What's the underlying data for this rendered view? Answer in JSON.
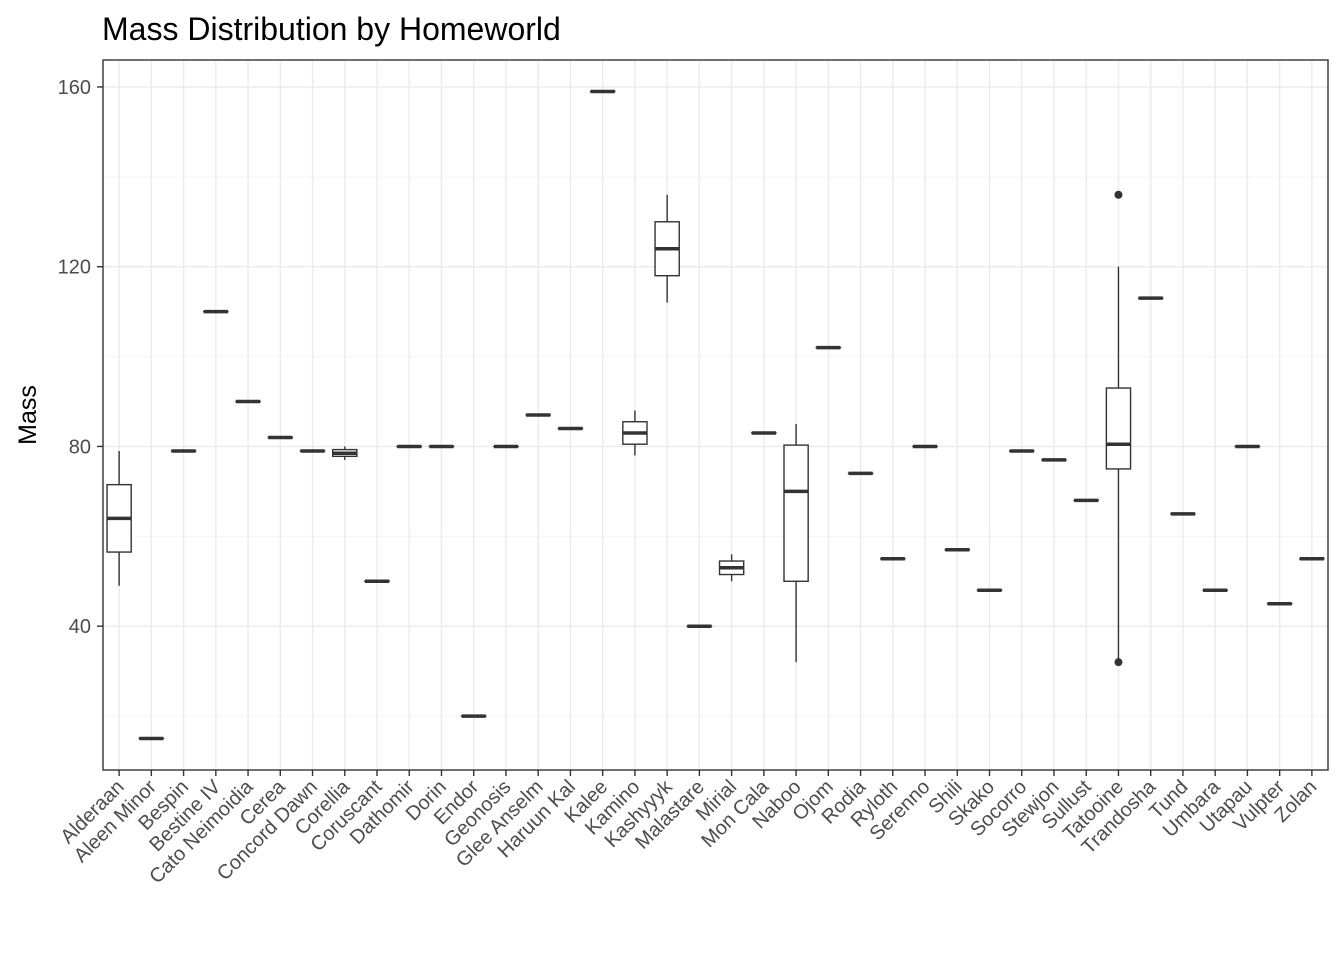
{
  "chart_data": {
    "type": "box",
    "title": "Mass Distribution by Homeworld",
    "xlabel": "",
    "ylabel": "Mass",
    "ylim": [
      8,
      166
    ],
    "yticks": [
      40,
      80,
      120,
      160
    ],
    "grid": true,
    "categories": [
      "Alderaan",
      "Aleen Minor",
      "Bespin",
      "Bestine IV",
      "Cato Neimoidia",
      "Cerea",
      "Concord Dawn",
      "Corellia",
      "Coruscant",
      "Dathomir",
      "Dorin",
      "Endor",
      "Geonosis",
      "Glee Anselm",
      "Haruun Kal",
      "Kalee",
      "Kamino",
      "Kashyyyk",
      "Malastare",
      "Mirial",
      "Mon Cala",
      "Naboo",
      "Ojom",
      "Rodia",
      "Ryloth",
      "Serenno",
      "Shili",
      "Skako",
      "Socorro",
      "Stewjon",
      "Sullust",
      "Tatooine",
      "Trandosha",
      "Tund",
      "Umbara",
      "Utapau",
      "Vulpter",
      "Zolan"
    ],
    "boxes": [
      {
        "category": "Alderaan",
        "min": 49,
        "q1": 56.5,
        "median": 64,
        "q3": 71.5,
        "max": 79,
        "outliers": []
      },
      {
        "category": "Aleen Minor",
        "min": 15,
        "q1": 15,
        "median": 15,
        "q3": 15,
        "max": 15,
        "outliers": []
      },
      {
        "category": "Bespin",
        "min": 79,
        "q1": 79,
        "median": 79,
        "q3": 79,
        "max": 79,
        "outliers": []
      },
      {
        "category": "Bestine IV",
        "min": 110,
        "q1": 110,
        "median": 110,
        "q3": 110,
        "max": 110,
        "outliers": []
      },
      {
        "category": "Cato Neimoidia",
        "min": 90,
        "q1": 90,
        "median": 90,
        "q3": 90,
        "max": 90,
        "outliers": []
      },
      {
        "category": "Cerea",
        "min": 82,
        "q1": 82,
        "median": 82,
        "q3": 82,
        "max": 82,
        "outliers": []
      },
      {
        "category": "Concord Dawn",
        "min": 79,
        "q1": 79,
        "median": 79,
        "q3": 79,
        "max": 79,
        "outliers": []
      },
      {
        "category": "Corellia",
        "min": 77,
        "q1": 77.8,
        "median": 78.5,
        "q3": 79.3,
        "max": 80,
        "outliers": []
      },
      {
        "category": "Coruscant",
        "min": 50,
        "q1": 50,
        "median": 50,
        "q3": 50,
        "max": 50,
        "outliers": []
      },
      {
        "category": "Dathomir",
        "min": 80,
        "q1": 80,
        "median": 80,
        "q3": 80,
        "max": 80,
        "outliers": []
      },
      {
        "category": "Dorin",
        "min": 80,
        "q1": 80,
        "median": 80,
        "q3": 80,
        "max": 80,
        "outliers": []
      },
      {
        "category": "Endor",
        "min": 20,
        "q1": 20,
        "median": 20,
        "q3": 20,
        "max": 20,
        "outliers": []
      },
      {
        "category": "Geonosis",
        "min": 80,
        "q1": 80,
        "median": 80,
        "q3": 80,
        "max": 80,
        "outliers": []
      },
      {
        "category": "Glee Anselm",
        "min": 87,
        "q1": 87,
        "median": 87,
        "q3": 87,
        "max": 87,
        "outliers": []
      },
      {
        "category": "Haruun Kal",
        "min": 84,
        "q1": 84,
        "median": 84,
        "q3": 84,
        "max": 84,
        "outliers": []
      },
      {
        "category": "Kalee",
        "min": 159,
        "q1": 159,
        "median": 159,
        "q3": 159,
        "max": 159,
        "outliers": []
      },
      {
        "category": "Kamino",
        "min": 78,
        "q1": 80.5,
        "median": 83,
        "q3": 85.5,
        "max": 88,
        "outliers": []
      },
      {
        "category": "Kashyyyk",
        "min": 112,
        "q1": 118,
        "median": 124,
        "q3": 130,
        "max": 136,
        "outliers": []
      },
      {
        "category": "Malastare",
        "min": 40,
        "q1": 40,
        "median": 40,
        "q3": 40,
        "max": 40,
        "outliers": []
      },
      {
        "category": "Mirial",
        "min": 50,
        "q1": 51.5,
        "median": 53,
        "q3": 54.5,
        "max": 56,
        "outliers": []
      },
      {
        "category": "Mon Cala",
        "min": 83,
        "q1": 83,
        "median": 83,
        "q3": 83,
        "max": 83,
        "outliers": []
      },
      {
        "category": "Naboo",
        "min": 32,
        "q1": 50,
        "median": 70,
        "q3": 80.3,
        "max": 85,
        "outliers": []
      },
      {
        "category": "Ojom",
        "min": 102,
        "q1": 102,
        "median": 102,
        "q3": 102,
        "max": 102,
        "outliers": []
      },
      {
        "category": "Rodia",
        "min": 74,
        "q1": 74,
        "median": 74,
        "q3": 74,
        "max": 74,
        "outliers": []
      },
      {
        "category": "Ryloth",
        "min": 55,
        "q1": 55,
        "median": 55,
        "q3": 55,
        "max": 55,
        "outliers": []
      },
      {
        "category": "Serenno",
        "min": 80,
        "q1": 80,
        "median": 80,
        "q3": 80,
        "max": 80,
        "outliers": []
      },
      {
        "category": "Shili",
        "min": 57,
        "q1": 57,
        "median": 57,
        "q3": 57,
        "max": 57,
        "outliers": []
      },
      {
        "category": "Skako",
        "min": 48,
        "q1": 48,
        "median": 48,
        "q3": 48,
        "max": 48,
        "outliers": []
      },
      {
        "category": "Socorro",
        "min": 79,
        "q1": 79,
        "median": 79,
        "q3": 79,
        "max": 79,
        "outliers": []
      },
      {
        "category": "Stewjon",
        "min": 77,
        "q1": 77,
        "median": 77,
        "q3": 77,
        "max": 77,
        "outliers": []
      },
      {
        "category": "Sullust",
        "min": 68,
        "q1": 68,
        "median": 68,
        "q3": 68,
        "max": 68,
        "outliers": []
      },
      {
        "category": "Tatooine",
        "min": 32,
        "q1": 75,
        "median": 80.5,
        "q3": 93,
        "max": 120,
        "outliers": [
          136,
          32
        ]
      },
      {
        "category": "Trandosha",
        "min": 113,
        "q1": 113,
        "median": 113,
        "q3": 113,
        "max": 113,
        "outliers": []
      },
      {
        "category": "Tund",
        "min": 65,
        "q1": 65,
        "median": 65,
        "q3": 65,
        "max": 65,
        "outliers": []
      },
      {
        "category": "Umbara",
        "min": 48,
        "q1": 48,
        "median": 48,
        "q3": 48,
        "max": 48,
        "outliers": []
      },
      {
        "category": "Utapau",
        "min": 80,
        "q1": 80,
        "median": 80,
        "q3": 80,
        "max": 80,
        "outliers": []
      },
      {
        "category": "Vulpter",
        "min": 45,
        "q1": 45,
        "median": 45,
        "q3": 45,
        "max": 45,
        "outliers": []
      },
      {
        "category": "Zolan",
        "min": 55,
        "q1": 55,
        "median": 55,
        "q3": 55,
        "max": 55,
        "outliers": []
      }
    ],
    "colors": {
      "box_stroke": "#333333",
      "grid_major": "#ebebeb",
      "grid_minor": "#f5f5f5",
      "panel_border": "#333333",
      "tick_text": "#4d4d4d"
    }
  }
}
